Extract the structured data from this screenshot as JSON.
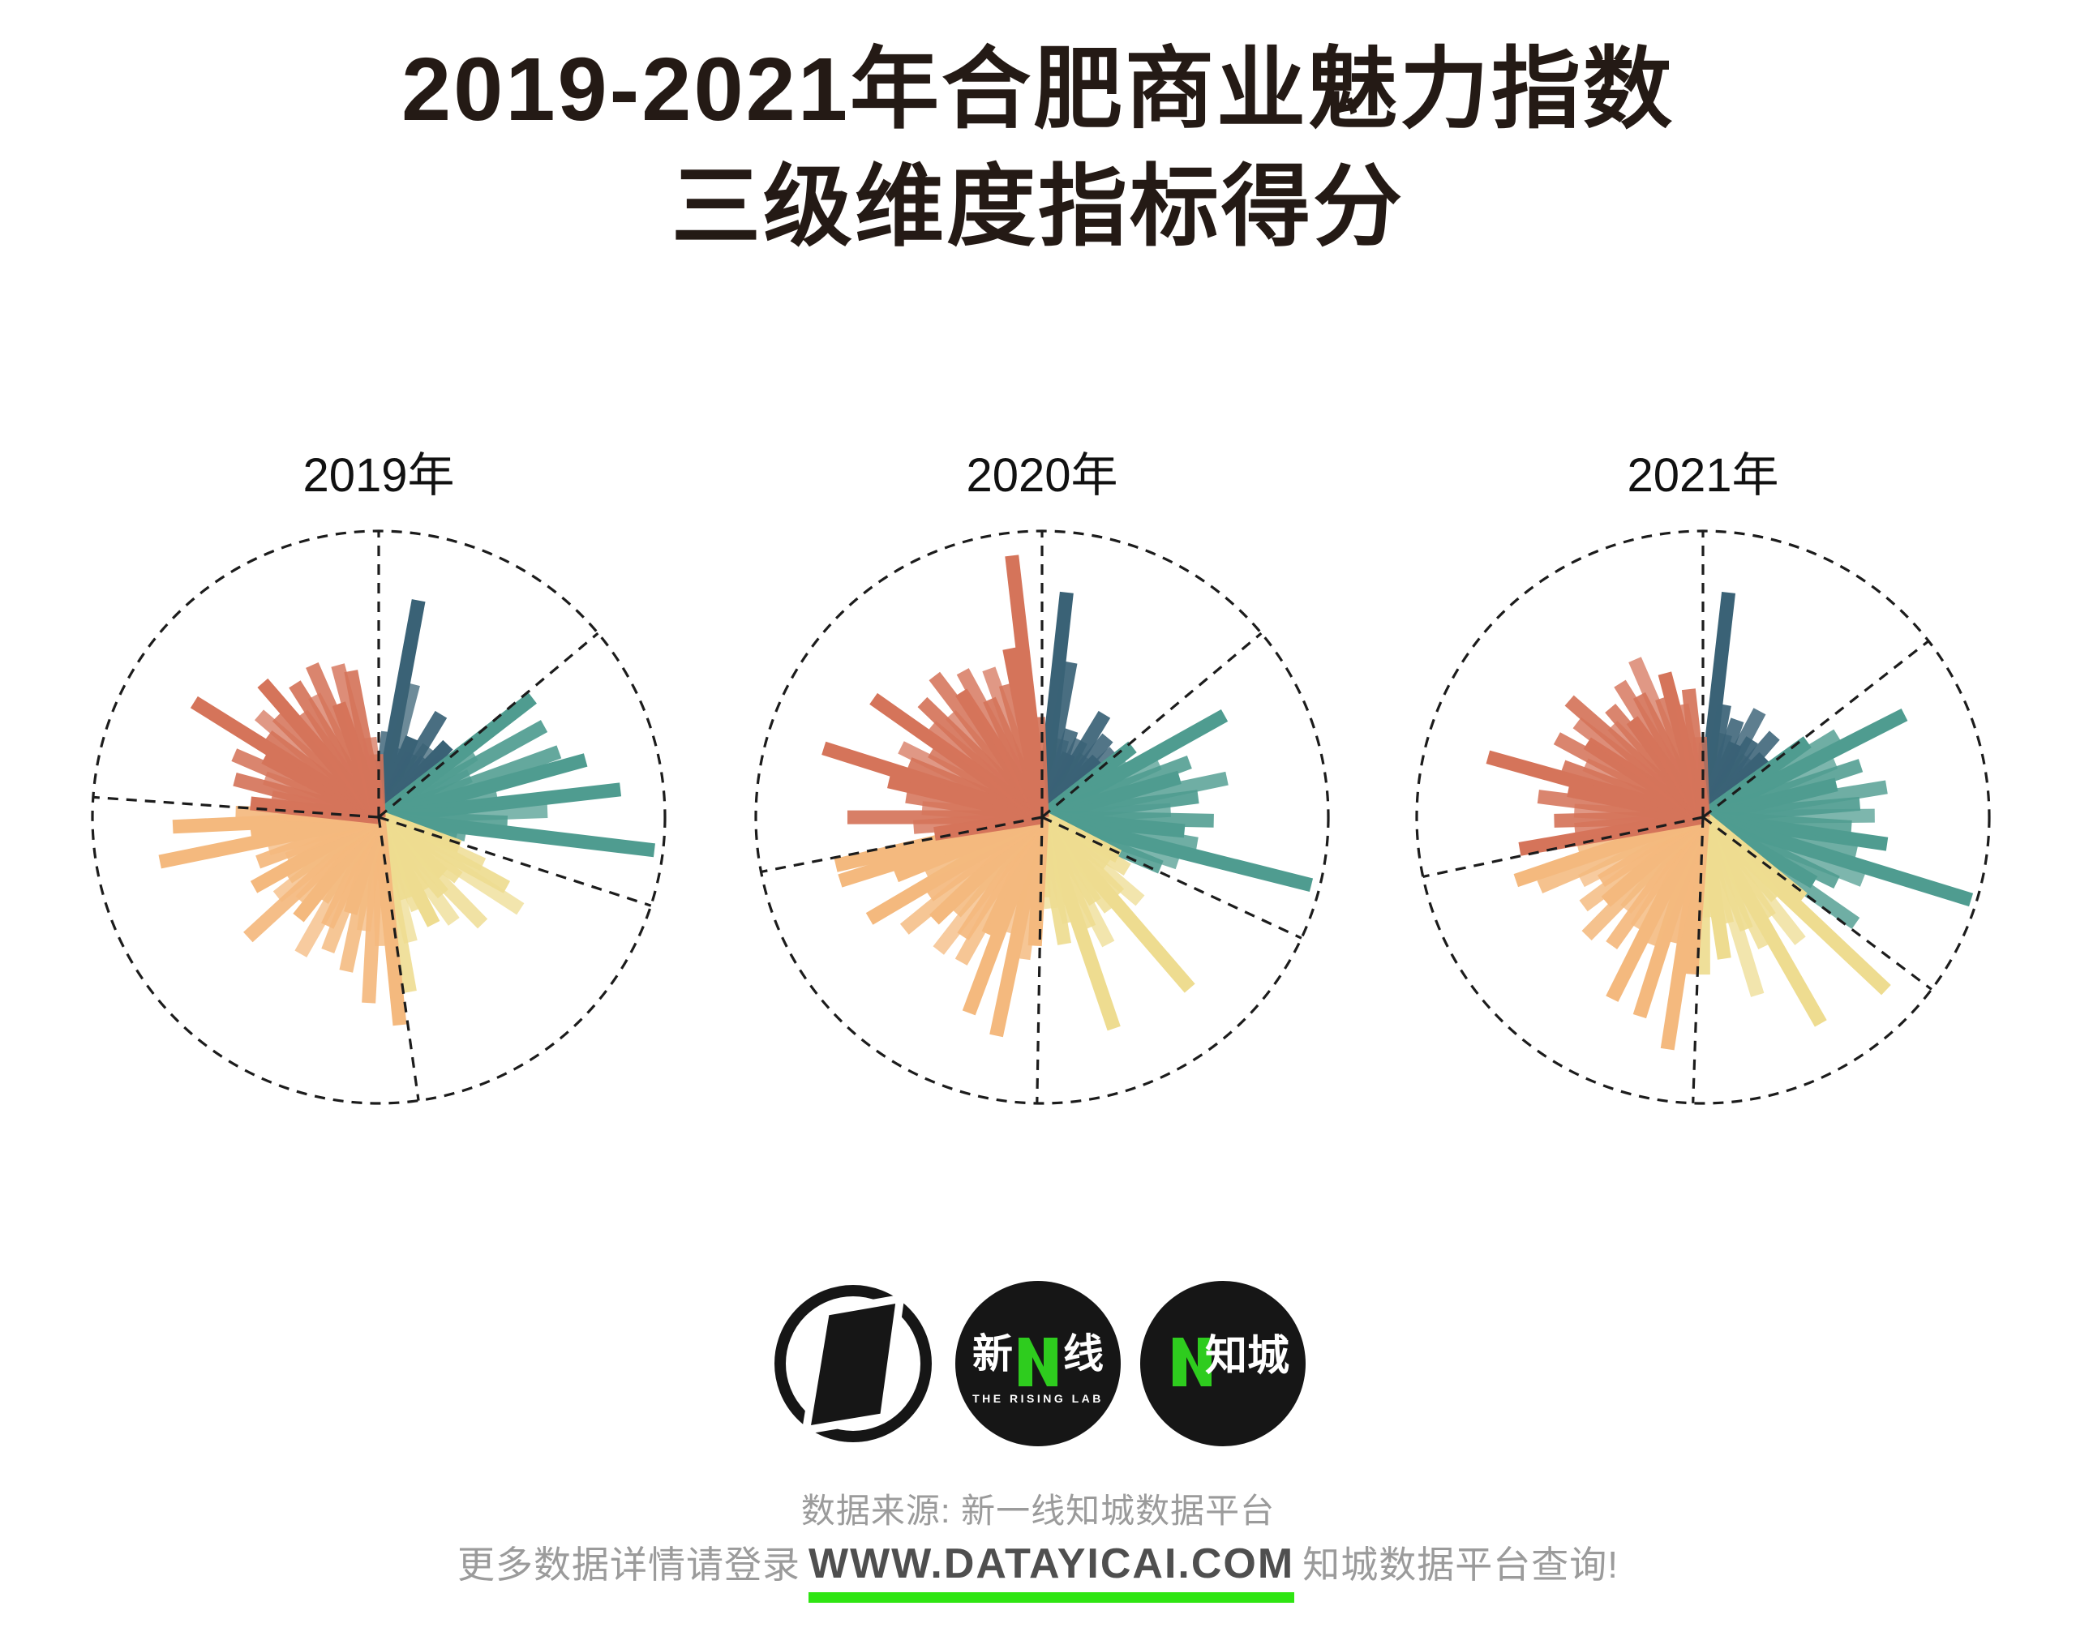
{
  "title": {
    "line1": "2019-2021年合肥商业魅力指数",
    "line2": "三级维度指标得分"
  },
  "style_colors": {
    "dimension_1_navy": "#3a6276",
    "dimension_2_teal": "#4f9c90",
    "dimension_3_yellow": "#eedc90",
    "dimension_4_orange": "#f4b97e",
    "dimension_5_red": "#d5745a",
    "dashed_guides": "#1c1c1c",
    "green_underline": "#2fe512",
    "logo_green": "#2ecc1e",
    "footer_text_gray": "#9b9b9b",
    "url_text_gray": "#4f4f4f"
  },
  "chart_data": [
    {
      "type": "bar",
      "layout": "polar-radial-rose",
      "title": "2019年",
      "radius_axis": "indicator score as % of outer dashed circle radius",
      "outer_circle": "dashed",
      "sector_boundaries_deg_clockwise_from_top": [
        0,
        50,
        108,
        172,
        274
      ],
      "series": [
        {
          "name": "dimension-1-navy",
          "color": "#3a6276",
          "values": [
            20,
            30,
            77,
            48,
            25,
            30,
            25,
            42,
            30,
            26,
            35,
            30
          ]
        },
        {
          "name": "dimension-2-teal",
          "color": "#4f9c90",
          "values": [
            68,
            40,
            66,
            35,
            67,
            75,
            42,
            85,
            59,
            45,
            97,
            31,
            28
          ]
        },
        {
          "name": "dimension-3-yellow",
          "color": "#eedc90",
          "values": [
            30,
            40,
            51,
            59,
            35,
            30,
            52,
            35,
            45,
            30,
            42,
            35,
            30,
            45,
            62
          ]
        },
        {
          "name": "dimension-4-orange",
          "color": "#f4b97e",
          "values": [
            73,
            45,
            65,
            40,
            55,
            35,
            50,
            42,
            55,
            35,
            45,
            40,
            62,
            45,
            38,
            50,
            35,
            45,
            40,
            78,
            45,
            72,
            50
          ]
        },
        {
          "name": "dimension-5-red",
          "color": "#d5745a",
          "values": [
            45,
            38,
            52,
            42,
            55,
            45,
            76,
            48,
            55,
            50,
            62,
            45,
            55,
            48,
            58,
            42,
            55,
            52,
            28,
            22
          ]
        }
      ]
    },
    {
      "type": "bar",
      "layout": "polar-radial-rose",
      "title": "2020年",
      "radius_axis": "indicator score as % of outer dashed circle radius",
      "outer_circle": "dashed",
      "sector_boundaries_deg_clockwise_from_top": [
        0,
        50,
        115,
        181,
        259
      ],
      "series": [
        {
          "name": "dimension-1-navy",
          "color": "#3a6276",
          "values": [
            22,
            79,
            55,
            28,
            32,
            24,
            30,
            42,
            26,
            36,
            28,
            34
          ]
        },
        {
          "name": "dimension-2-teal",
          "color": "#4f9c90",
          "values": [
            40,
            35,
            73,
            45,
            55,
            50,
            66,
            55,
            45,
            60,
            50,
            55,
            97,
            50,
            45
          ]
        },
        {
          "name": "dimension-3-yellow",
          "color": "#eedc90",
          "values": [
            30,
            35,
            28,
            45,
            38,
            79,
            40,
            35,
            50,
            42,
            78,
            38,
            45,
            32,
            28
          ]
        },
        {
          "name": "dimension-4-orange",
          "color": "#f4b97e",
          "values": [
            45,
            50,
            78,
            42,
            73,
            45,
            58,
            50,
            59,
            45,
            52,
            62,
            48,
            70,
            45,
            55,
            74,
            74
          ]
        },
        {
          "name": "dimension-5-red",
          "color": "#d5745a",
          "values": [
            38,
            45,
            68,
            42,
            48,
            55,
            80,
            50,
            55,
            45,
            72,
            50,
            58,
            48,
            62,
            52,
            58,
            45,
            55,
            48,
            60,
            92,
            35
          ]
        }
      ]
    },
    {
      "type": "bar",
      "layout": "polar-radial-rose",
      "title": "2021年",
      "radius_axis": "indicator score as % of outer dashed circle radius",
      "outer_circle": "dashed",
      "sector_boundaries_deg_clockwise_from_top": [
        0,
        52,
        127,
        182,
        258
      ],
      "series": [
        {
          "name": "dimension-1-navy",
          "color": "#3a6276",
          "values": [
            26,
            79,
            40,
            30,
            36,
            28,
            42,
            32,
            26,
            38,
            30,
            24
          ]
        },
        {
          "name": "dimension-2-teal",
          "color": "#4f9c90",
          "values": [
            45,
            55,
            79,
            50,
            58,
            48,
            65,
            55,
            60,
            52,
            65,
            55,
            98,
            60,
            52,
            45,
            65
          ]
        },
        {
          "name": "dimension-3-yellow",
          "color": "#eedc90",
          "values": [
            45,
            88,
            38,
            55,
            42,
            83,
            50,
            42,
            65,
            38,
            50,
            35,
            55
          ]
        },
        {
          "name": "dimension-4-orange",
          "color": "#f4b97e",
          "values": [
            55,
            82,
            45,
            73,
            48,
            71,
            45,
            55,
            42,
            58,
            45,
            52,
            42,
            48,
            62,
            69,
            45
          ]
        },
        {
          "name": "dimension-5-red",
          "color": "#d5745a",
          "values": [
            65,
            45,
            52,
            45,
            58,
            48,
            78,
            52,
            45,
            58,
            48,
            55,
            62,
            45,
            50,
            42,
            55,
            48,
            60,
            44,
            52,
            40,
            45,
            28
          ]
        }
      ]
    }
  ],
  "footer": {
    "logo_rising_lab": {
      "char_left": "新",
      "char_right": "线",
      "subtitle": "THE RISING LAB"
    },
    "logo_zhicheng": {
      "text": "知城"
    },
    "source_line": "数据来源: 新一线知城数据平台",
    "more_prefix": "更多数据详情请登录",
    "more_url": "WWW.DATAYICAI.COM",
    "more_suffix": "知城数据平台查询!"
  }
}
